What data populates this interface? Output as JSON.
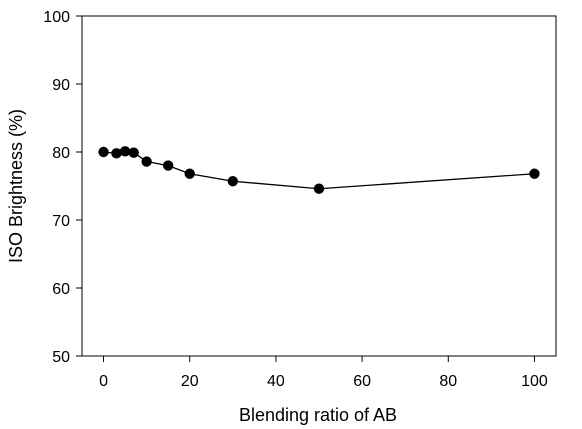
{
  "chart_data": {
    "type": "line",
    "title": "",
    "xlabel": "Blending ratio of AB",
    "ylabel": "ISO Brightness (%)",
    "xlim": [
      -5,
      105
    ],
    "ylim": [
      50,
      100
    ],
    "xticks": [
      0,
      20,
      40,
      60,
      80,
      100
    ],
    "yticks": [
      50,
      60,
      70,
      80,
      90,
      100
    ],
    "grid": false,
    "legend": "none",
    "series": [
      {
        "x": [
          0,
          3,
          5,
          7,
          10,
          15,
          20,
          30,
          50,
          100
        ],
        "y": [
          80.0,
          79.8,
          80.1,
          79.9,
          78.6,
          78.0,
          76.8,
          75.7,
          74.6,
          76.8
        ],
        "color": "#000000",
        "marker": "circle"
      }
    ]
  }
}
